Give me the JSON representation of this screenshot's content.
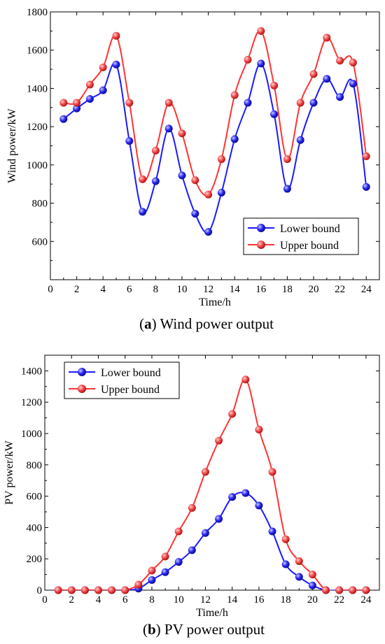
{
  "chart_data": [
    {
      "type": "line",
      "caption_letter": "a",
      "caption_text": " Wind power output",
      "xlabel": "Time/h",
      "ylabel": "Wind power/kW",
      "xlim": [
        0,
        25
      ],
      "ylim": [
        400,
        1800
      ],
      "xticks": [
        0,
        2,
        4,
        6,
        8,
        10,
        12,
        14,
        16,
        18,
        20,
        22,
        24
      ],
      "yticks": [
        600,
        800,
        1000,
        1200,
        1400,
        1600,
        1800
      ],
      "legend_position": "bottom-right",
      "x": [
        1,
        2,
        3,
        4,
        5,
        6,
        7,
        8,
        9,
        10,
        11,
        12,
        13,
        14,
        15,
        16,
        17,
        18,
        19,
        20,
        21,
        22,
        23,
        24
      ],
      "series": [
        {
          "name": "Lower bound",
          "color": "#1a1aff",
          "values": [
            1240,
            1295,
            1345,
            1390,
            1525,
            1125,
            755,
            915,
            1190,
            945,
            745,
            650,
            855,
            1135,
            1325,
            1530,
            1265,
            875,
            1130,
            1325,
            1450,
            1355,
            1425,
            885
          ]
        },
        {
          "name": "Upper bound",
          "color": "#ff3333",
          "values": [
            1325,
            1325,
            1420,
            1510,
            1675,
            1325,
            925,
            1075,
            1325,
            1165,
            920,
            845,
            1030,
            1365,
            1550,
            1700,
            1415,
            1030,
            1325,
            1475,
            1665,
            1545,
            1535,
            1045
          ]
        }
      ]
    },
    {
      "type": "line",
      "caption_letter": "b",
      "caption_text": " PV power output",
      "xlabel": "Time/h",
      "ylabel": "PV power/kW",
      "xlim": [
        0,
        25
      ],
      "ylim": [
        0,
        1500
      ],
      "xticks": [
        0,
        2,
        4,
        6,
        8,
        10,
        12,
        14,
        16,
        18,
        20,
        22,
        24
      ],
      "yticks": [
        0,
        200,
        400,
        600,
        800,
        1000,
        1200,
        1400
      ],
      "legend_position": "top-left",
      "x": [
        1,
        2,
        3,
        4,
        5,
        6,
        7,
        8,
        9,
        10,
        11,
        12,
        13,
        14,
        15,
        16,
        17,
        18,
        19,
        20,
        21,
        22,
        23,
        24
      ],
      "series": [
        {
          "name": "Lower bound",
          "color": "#1a1aff",
          "values": [
            0,
            0,
            0,
            0,
            0,
            0,
            10,
            65,
            115,
            180,
            255,
            365,
            455,
            595,
            620,
            540,
            375,
            165,
            85,
            30,
            0,
            0,
            0,
            0
          ]
        },
        {
          "name": "Upper bound",
          "color": "#ff3333",
          "values": [
            0,
            0,
            0,
            0,
            0,
            0,
            35,
            125,
            215,
            375,
            525,
            755,
            955,
            1125,
            1345,
            1025,
            755,
            325,
            185,
            100,
            0,
            0,
            0,
            0
          ]
        }
      ]
    }
  ]
}
